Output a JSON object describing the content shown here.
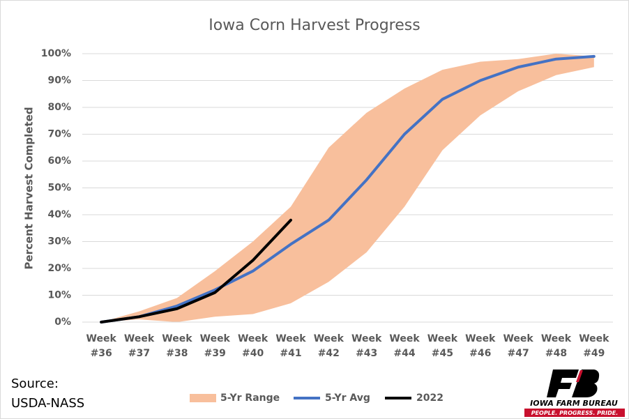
{
  "chart_data": {
    "type": "line",
    "title": "Iowa Corn Harvest Progress",
    "y_label": "Percent Harvest Completed",
    "categories": [
      "Week #36",
      "Week #37",
      "Week #38",
      "Week #39",
      "Week #40",
      "Week #41",
      "Week #42",
      "Week #43",
      "Week #44",
      "Week #45",
      "Week #46",
      "Week #47",
      "Week #48",
      "Week #49"
    ],
    "band": {
      "name": "5-Yr Range",
      "color": "#f8bf9c",
      "upper": [
        0,
        4,
        9,
        19,
        30,
        43,
        65,
        78,
        87,
        94,
        97,
        98,
        100,
        99
      ],
      "lower": [
        0,
        1,
        0,
        2,
        3,
        7,
        15,
        26,
        43,
        64,
        77,
        86,
        92,
        95
      ]
    },
    "series": [
      {
        "name": "5-Yr Avg",
        "color": "#4472c4",
        "values": [
          0,
          2,
          6,
          12,
          19,
          29,
          38,
          53,
          70,
          83,
          90,
          95,
          98,
          99
        ]
      },
      {
        "name": "2022",
        "color": "#000000",
        "values": [
          0,
          2,
          5,
          11,
          23,
          38,
          null,
          null,
          null,
          null,
          null,
          null,
          null,
          null
        ]
      }
    ],
    "ylim": [
      0,
      100
    ],
    "yticks": [
      {
        "value": 0,
        "label": "0%"
      },
      {
        "value": 10,
        "label": "10%"
      },
      {
        "value": 20,
        "label": "20%"
      },
      {
        "value": 30,
        "label": "30%"
      },
      {
        "value": 40,
        "label": "40%"
      },
      {
        "value": 50,
        "label": "50%"
      },
      {
        "value": 60,
        "label": "60%"
      },
      {
        "value": 70,
        "label": "70%"
      },
      {
        "value": 80,
        "label": "80%"
      },
      {
        "value": 90,
        "label": "90%"
      },
      {
        "value": 100,
        "label": "100%"
      }
    ],
    "grid": true,
    "legend": "bottom",
    "annotations": [
      "Source:",
      "USDA-NASS"
    ],
    "logo": {
      "name": "IOWA FARM BUREAU",
      "tagline": "PEOPLE. PROGRESS. PRIDE."
    }
  }
}
